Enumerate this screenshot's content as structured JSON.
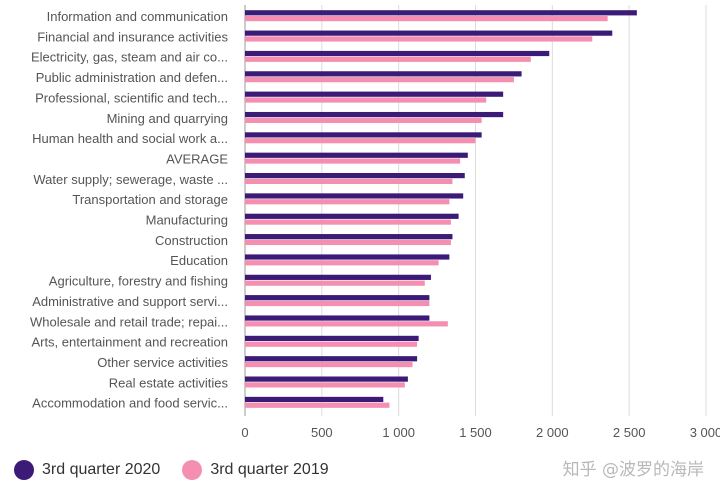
{
  "chart_data": {
    "type": "bar",
    "orientation": "horizontal",
    "categories": [
      "Information and communication",
      "Financial and insurance activities",
      "Electricity, gas, steam and air co...",
      "Public administration and defen...",
      "Professional, scientific and tech...",
      "Mining and quarrying",
      "Human health and social work a...",
      "AVERAGE",
      "Water supply; sewerage, waste ...",
      "Transportation and storage",
      "Manufacturing",
      "Construction",
      "Education",
      "Agriculture, forestry and fishing",
      "Administrative and support servi...",
      "Wholesale and retail trade; repai...",
      "Arts, entertainment and recreation",
      "Other service activities",
      "Real estate activities",
      "Accommodation and food servic..."
    ],
    "series": [
      {
        "name": "3rd quarter 2020",
        "color": "#3b1a78",
        "values": [
          2550,
          2390,
          1980,
          1800,
          1680,
          1680,
          1540,
          1450,
          1430,
          1420,
          1390,
          1350,
          1330,
          1210,
          1200,
          1200,
          1130,
          1120,
          1060,
          900
        ]
      },
      {
        "name": "3rd quarter 2019",
        "color": "#f48fb1",
        "values": [
          2360,
          2260,
          1860,
          1750,
          1570,
          1540,
          1500,
          1400,
          1350,
          1330,
          1340,
          1340,
          1260,
          1170,
          1200,
          1320,
          1120,
          1090,
          1040,
          940
        ]
      }
    ],
    "xlim": [
      0,
      3000
    ],
    "x_ticks": [
      0,
      500,
      1000,
      1500,
      2000,
      2500,
      3000
    ],
    "x_tick_labels": [
      "0",
      "500",
      "1 000",
      "1 500",
      "2 000",
      "2 500",
      "3 000"
    ],
    "grid": true,
    "legend_position": "bottom-left",
    "title": "",
    "xlabel": "",
    "ylabel": ""
  },
  "legend": {
    "item1": "3rd quarter 2020",
    "item2": "3rd quarter 2019",
    "color1": "#3b1a78",
    "color2": "#f48fb1"
  },
  "watermark": "知乎 @波罗的海岸"
}
